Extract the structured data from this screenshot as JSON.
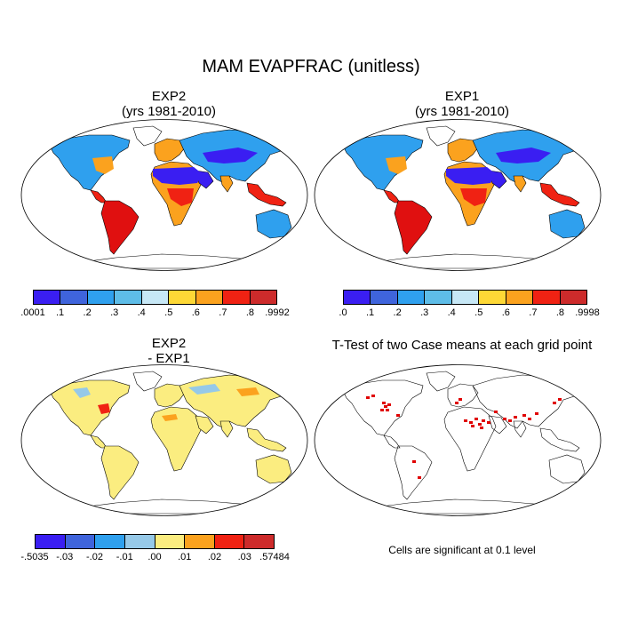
{
  "title": "MAM EVAPFRAC (unitless)",
  "panels": [
    {
      "id": "exp2",
      "title_line1": "EXP2",
      "title_line2": "(yrs 1981-2010)"
    },
    {
      "id": "exp1",
      "title_line1": "EXP1",
      "title_line2": "(yrs 1981-2010)"
    },
    {
      "id": "diff",
      "title_line1": "EXP2",
      "title_line2": " - EXP1"
    },
    {
      "id": "ttest",
      "title_line1": "T-Test of two Case means at each grid point",
      "title_line2": ""
    }
  ],
  "colorbars": {
    "exp2": {
      "colors": [
        "#3a1ef2",
        "#3f64dc",
        "#2fa0ee",
        "#5ebde8",
        "#c7e8f6",
        "#fdd836",
        "#fba21e",
        "#f02213",
        "#cd2b2b"
      ],
      "labels": [
        ".0001",
        ".1",
        ".2",
        ".3",
        ".4",
        ".5",
        ".6",
        ".7",
        ".8",
        ".9992"
      ]
    },
    "exp1": {
      "colors": [
        "#3a1ef2",
        "#3f64dc",
        "#2fa0ee",
        "#5ebde8",
        "#c7e8f6",
        "#fdd836",
        "#fba21e",
        "#f02213",
        "#cd2b2b"
      ],
      "labels": [
        ".0",
        ".1",
        ".2",
        ".3",
        ".4",
        ".5",
        ".6",
        ".7",
        ".8",
        ".9998"
      ]
    },
    "diff": {
      "colors": [
        "#3a1ef2",
        "#3f64dc",
        "#2fa0ee",
        "#96c9e8",
        "#fbed80",
        "#fba21e",
        "#f02213",
        "#cd2b2b"
      ],
      "labels": [
        "-.5035",
        "-.03",
        "-.02",
        "-.01",
        ".00",
        ".01",
        ".02",
        ".03",
        ".57484"
      ]
    }
  },
  "significance_note": "Cells are significant at 0.1 level",
  "map_colors": {
    "desert": "#3a1ef2",
    "arid": "#3f64dc",
    "semi_arid": "#2fa0ee",
    "temperate": "#fba21e",
    "humid": "#f02213",
    "tropics": "#e01010",
    "diff_base": "#fbed80",
    "diff_neg": "#96c9e8",
    "diff_pos": "#fba21e",
    "significant": "#e00000"
  }
}
